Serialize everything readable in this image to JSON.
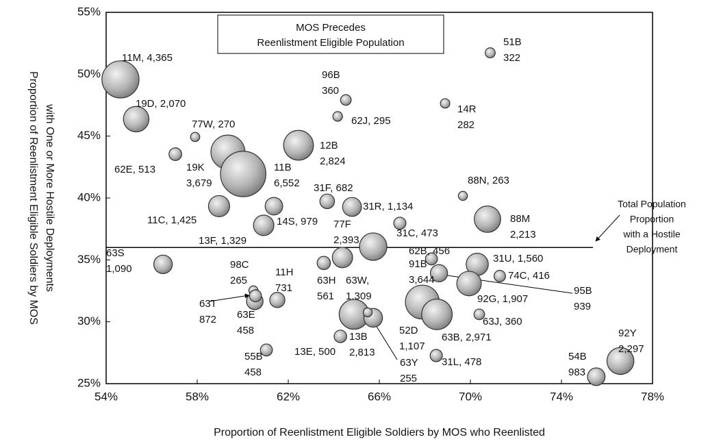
{
  "chart_data": {
    "type": "bubble",
    "xlabel": "Proportion of Reenlistment Eligible Soldiers by MOS who Reenlisted",
    "ylabel": [
      "Proportion of Reenlistment Eligible Soldiers by MOS",
      "with One or More Hostile Deployments"
    ],
    "legend_box": [
      "MOS Precedes",
      "Reenlistment Eligible Population"
    ],
    "reference_line": {
      "value": 36,
      "label": [
        "Total Population",
        "Proportion",
        "with a Hostile",
        "Deployment"
      ]
    },
    "xlim": [
      54,
      78
    ],
    "xticks": [
      {
        "value": 54,
        "label": "54%"
      },
      {
        "value": 58,
        "label": "58%"
      },
      {
        "value": 62,
        "label": "62%"
      },
      {
        "value": 66,
        "label": "66%"
      },
      {
        "value": 70,
        "label": "70%"
      },
      {
        "value": 74,
        "label": "74%"
      },
      {
        "value": 78,
        "label": "78%"
      }
    ],
    "ylim": [
      25,
      55
    ],
    "yticks": [
      {
        "value": 25,
        "label": "25%"
      },
      {
        "value": 30,
        "label": "30%"
      },
      {
        "value": 35,
        "label": "35%"
      },
      {
        "value": 40,
        "label": "40%"
      },
      {
        "value": 45,
        "label": "45%"
      },
      {
        "value": 50,
        "label": "50%"
      },
      {
        "value": 55,
        "label": "55%"
      }
    ],
    "points": [
      {
        "label": [
          "11M, 4,365"
        ],
        "x": 54.63,
        "y": 49.58,
        "size": 4365
      },
      {
        "label": [
          "19D, 2,070"
        ],
        "x": 55.32,
        "y": 46.37,
        "size": 2070
      },
      {
        "label": [
          "62E, 513"
        ],
        "x": 57.04,
        "y": 43.54,
        "size": 513
      },
      {
        "label": [
          "77W, 270"
        ],
        "x": 57.91,
        "y": 44.93,
        "size": 270
      },
      {
        "label": [
          "19K",
          "3,679"
        ],
        "x": 59.35,
        "y": 43.71,
        "size": 3679
      },
      {
        "label": [
          "11B",
          "6,552"
        ],
        "x": 60.02,
        "y": 41.94,
        "size": 6552
      },
      {
        "label": [
          "12B",
          "2,824"
        ],
        "x": 62.45,
        "y": 44.26,
        "size": 2824
      },
      {
        "label": [
          "96B",
          "360"
        ],
        "x": 64.53,
        "y": 47.92,
        "size": 360
      },
      {
        "label": [
          "62J, 295"
        ],
        "x": 64.17,
        "y": 46.59,
        "size": 295
      },
      {
        "label": [
          "14R",
          "282"
        ],
        "x": 68.89,
        "y": 47.64,
        "size": 282
      },
      {
        "label": [
          "51B",
          "322"
        ],
        "x": 70.87,
        "y": 51.73,
        "size": 322
      },
      {
        "label": [
          "88N, 263"
        ],
        "x": 69.67,
        "y": 40.17,
        "size": 263
      },
      {
        "label": [
          "88M",
          "2,213"
        ],
        "x": 70.75,
        "y": 38.29,
        "size": 2213
      },
      {
        "label": [
          "31F, 682"
        ],
        "x": 63.71,
        "y": 39.73,
        "size": 682
      },
      {
        "label": [
          "31R, 1,134"
        ],
        "x": 64.8,
        "y": 39.28,
        "size": 1134
      },
      {
        "label": [
          "11C, 1,425"
        ],
        "x": 58.96,
        "y": 39.34,
        "size": 1425
      },
      {
        "label": [
          "14S, 979"
        ],
        "x": 61.37,
        "y": 39.34,
        "size": 979
      },
      {
        "label": [
          "13F, 1,329"
        ],
        "x": 60.92,
        "y": 37.79,
        "size": 1329
      },
      {
        "label": [
          "31C, 473"
        ],
        "x": 66.9,
        "y": 37.96,
        "size": 473
      },
      {
        "label": [
          "77F",
          "2,393"
        ],
        "x": 65.73,
        "y": 36.07,
        "size": 2393
      },
      {
        "label": [
          "63S",
          "1,090"
        ],
        "x": 56.5,
        "y": 34.64,
        "size": 1090
      },
      {
        "label": [
          "62B, 456"
        ],
        "x": 68.29,
        "y": 35.08,
        "size": 456
      },
      {
        "label": [
          "31U, 1,560"
        ],
        "x": 70.3,
        "y": 34.64,
        "size": 1560
      },
      {
        "label": [
          "74C, 416"
        ],
        "x": 71.29,
        "y": 33.69,
        "size": 416
      },
      {
        "label": [
          "95B",
          "939"
        ],
        "x": 68.62,
        "y": 33.92,
        "size": 939
      },
      {
        "label": [
          "92G, 1,907"
        ],
        "x": 69.94,
        "y": 33.09,
        "size": 1907
      },
      {
        "label": [
          "63J, 360"
        ],
        "x": 70.39,
        "y": 30.6,
        "size": 360
      },
      {
        "label": [
          "91B",
          "3,644"
        ],
        "x": 67.89,
        "y": 31.59,
        "size": 3644
      },
      {
        "label": [
          "63B, 2,971"
        ],
        "x": 68.53,
        "y": 30.6,
        "size": 2971
      },
      {
        "label": [
          "31L, 478"
        ],
        "x": 68.5,
        "y": 27.27,
        "size": 478
      },
      {
        "label": [
          "63H",
          "561"
        ],
        "x": 63.56,
        "y": 34.75,
        "size": 561
      },
      {
        "label": [
          "63W,",
          "1,309"
        ],
        "x": 64.38,
        "y": 35.19,
        "size": 1309
      },
      {
        "label": [
          "98C",
          "265"
        ],
        "x": 60.47,
        "y": 32.53,
        "size": 265
      },
      {
        "label": [
          "11H",
          "731"
        ],
        "x": 61.52,
        "y": 31.76,
        "size": 731
      },
      {
        "label": [
          "63T",
          "872"
        ],
        "x": 60.53,
        "y": 31.65,
        "size": 872
      },
      {
        "label": [
          "63E",
          "458"
        ],
        "x": 60.56,
        "y": 32.09,
        "size": 458
      },
      {
        "label": [
          "13B",
          "2,813"
        ],
        "x": 64.89,
        "y": 30.6,
        "size": 2813
      },
      {
        "label": [
          "52D",
          "1,107"
        ],
        "x": 65.73,
        "y": 30.32,
        "size": 1107
      },
      {
        "label": [
          "63Y",
          "255"
        ],
        "x": 65.49,
        "y": 30.76,
        "size": 255
      },
      {
        "label": [
          "13E, 500"
        ],
        "x": 64.29,
        "y": 28.82,
        "size": 500
      },
      {
        "label": [
          "55B",
          "458"
        ],
        "x": 61.04,
        "y": 27.72,
        "size": 458
      },
      {
        "label": [
          "92Y",
          "2,297"
        ],
        "x": 76.59,
        "y": 26.83,
        "size": 2297
      },
      {
        "label": [
          "54B",
          "983"
        ],
        "x": 75.53,
        "y": 25.56,
        "size": 983
      }
    ]
  }
}
